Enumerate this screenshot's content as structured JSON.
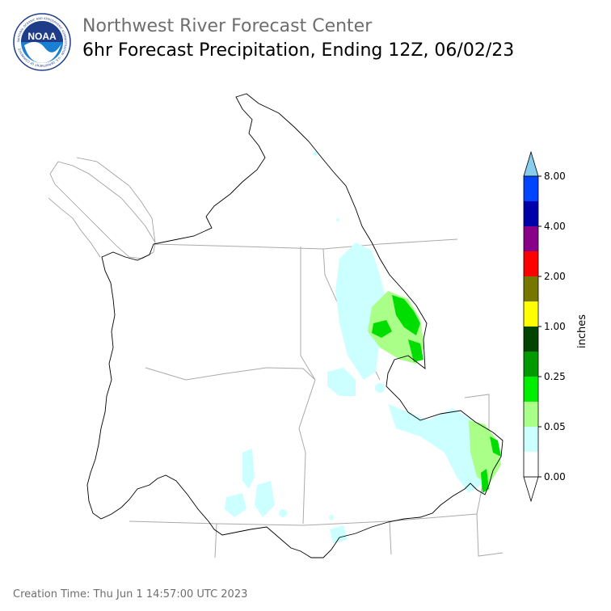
{
  "header": {
    "agency": "Northwest River Forecast Center",
    "product": "6hr Forecast Precipitation, Ending 12Z, 06/02/23"
  },
  "logo": {
    "name": "NOAA",
    "ring_text": "NATIONAL OCEANIC AND ATMOSPHERIC ADMINISTRATION · U.S. DEPARTMENT OF COMMERCE",
    "colors": {
      "ring": "#ffffff",
      "top": "#1f3c88",
      "bottom": "#1a7fd0",
      "bird": "#ffffff"
    }
  },
  "legend": {
    "label": "inches",
    "ticks": [
      "0.00",
      "0.05",
      "0.25",
      "1.00",
      "2.00",
      "4.00",
      "8.00"
    ],
    "bins": [
      {
        "color": "#ffffff"
      },
      {
        "color": "#ccffff"
      },
      {
        "color": "#aaff88"
      },
      {
        "color": "#00ee00"
      },
      {
        "color": "#009900"
      },
      {
        "color": "#004400"
      },
      {
        "color": "#ffff00"
      },
      {
        "color": "#777700"
      },
      {
        "color": "#ff0000"
      },
      {
        "color": "#880088"
      },
      {
        "color": "#0000aa"
      },
      {
        "color": "#0044ff"
      }
    ],
    "extend_color": "#88ccee"
  },
  "map": {
    "colors": {
      "basin_outline": "#000000",
      "state_lines": "#aaaaaa",
      "coast_lines": "#999999",
      "precip_light": "#ccffff",
      "precip_moderate": "#aaff88",
      "precip_heavy": "#00dd00",
      "precip_heavier": "#009900"
    }
  },
  "footer": {
    "creation_time": "Creation Time: Thu Jun 1 14:57:00 UTC 2023"
  }
}
